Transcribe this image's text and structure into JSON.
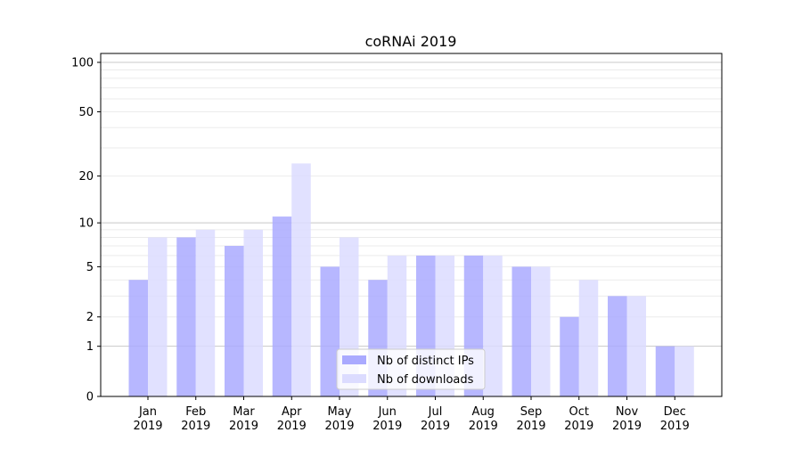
{
  "chart_data": {
    "type": "bar",
    "title": "coRNAi 2019",
    "xlabel": "",
    "ylabel": "",
    "yscale": "log10(y+1)",
    "ylim": [
      0,
      110
    ],
    "grid": true,
    "legend_position": "bottom-center",
    "categories": [
      [
        "Jan",
        "2019"
      ],
      [
        "Feb",
        "2019"
      ],
      [
        "Mar",
        "2019"
      ],
      [
        "Apr",
        "2019"
      ],
      [
        "May",
        "2019"
      ],
      [
        "Jun",
        "2019"
      ],
      [
        "Jul",
        "2019"
      ],
      [
        "Aug",
        "2019"
      ],
      [
        "Sep",
        "2019"
      ],
      [
        "Oct",
        "2019"
      ],
      [
        "Nov",
        "2019"
      ],
      [
        "Dec",
        "2019"
      ]
    ],
    "yticks": [
      0,
      1,
      2,
      5,
      10,
      20,
      50,
      100
    ],
    "ytick_labels": [
      "0",
      "1",
      "2",
      "5",
      "10",
      "20",
      "50",
      "100"
    ],
    "series": [
      {
        "name": "Nb of distinct IPs",
        "color": "#aaaaff",
        "values": [
          4,
          8,
          7,
          11,
          5,
          4,
          6,
          6,
          5,
          2,
          3,
          1
        ]
      },
      {
        "name": "Nb of downloads",
        "color": "#dcdcff",
        "values": [
          8,
          9,
          9,
          24,
          8,
          6,
          6,
          6,
          5,
          4,
          3,
          1
        ]
      }
    ]
  }
}
